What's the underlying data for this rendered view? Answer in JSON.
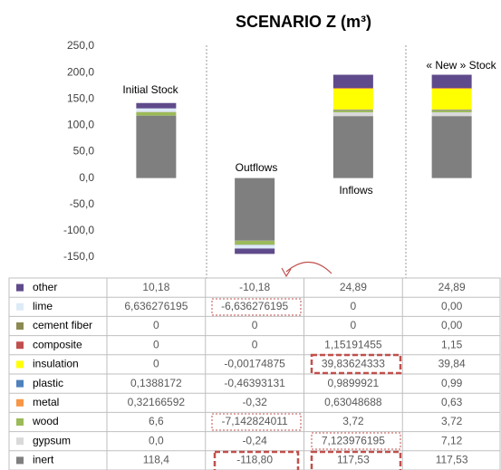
{
  "chart_data": {
    "type": "bar",
    "stacked": true,
    "title": "SCENARIO Z (m³)",
    "categories": [
      "Initial Stock",
      "Outflows",
      "Inflows",
      "« New » Stock"
    ],
    "ylim": [
      -150,
      250
    ],
    "yticks": [
      {
        "value": -150,
        "label": "-150,0"
      },
      {
        "value": -100,
        "label": "-100,0"
      },
      {
        "value": -50,
        "label": "-50,0"
      },
      {
        "value": 0,
        "label": "0,0"
      },
      {
        "value": 50,
        "label": "50,0"
      },
      {
        "value": 100,
        "label": "100,0"
      },
      {
        "value": 150,
        "label": "150,0"
      },
      {
        "value": 200,
        "label": "200,0"
      },
      {
        "value": 250,
        "label": "250,0"
      }
    ],
    "series": [
      {
        "name": "other",
        "color": "#5f4b8b",
        "values": [
          10.18,
          -10.18,
          24.89,
          24.89
        ],
        "value_labels": [
          "10,18",
          "-10,18",
          "24,89",
          "24,89"
        ]
      },
      {
        "name": "lime",
        "color": "#ddebf7",
        "values": [
          6.636276195,
          -6.636276195,
          0,
          0
        ],
        "value_labels": [
          "6,636276195",
          "-6,636276195",
          "0",
          "0,00"
        ]
      },
      {
        "name": "cement fiber",
        "color": "#8c8a52",
        "values": [
          0,
          0,
          0,
          0
        ],
        "value_labels": [
          "0",
          "0",
          "0",
          "0,00"
        ]
      },
      {
        "name": "composite",
        "color": "#c0504d",
        "values": [
          0,
          0,
          1.15191455,
          1.15
        ],
        "value_labels": [
          "0",
          "0",
          "1,15191455",
          "1,15"
        ]
      },
      {
        "name": "insulation",
        "color": "#ffff00",
        "values": [
          0,
          -0.00174875,
          39.83624333,
          39.84
        ],
        "value_labels": [
          "0",
          "-0,00174875",
          "39,83624333",
          "39,84"
        ]
      },
      {
        "name": "plastic",
        "color": "#4f81bd",
        "values": [
          0.1388172,
          -0.46393131,
          0.9899921,
          0.99
        ],
        "value_labels": [
          "0,1388172",
          "-0,46393131",
          "0,9899921",
          "0,99"
        ]
      },
      {
        "name": "metal",
        "color": "#f79646",
        "values": [
          0.32166592,
          -0.32,
          0.63048688,
          0.63
        ],
        "value_labels": [
          "0,32166592",
          "-0,32",
          "0,63048688",
          "0,63"
        ]
      },
      {
        "name": "wood",
        "color": "#9bbb59",
        "values": [
          6.6,
          -7.142824011,
          3.72,
          3.72
        ],
        "value_labels": [
          "6,6",
          "-7,142824011",
          "3,72",
          "3,72"
        ]
      },
      {
        "name": "gypsum",
        "color": "#d9d9d9",
        "values": [
          0,
          -0.24,
          7.123976195,
          7.12
        ],
        "value_labels": [
          "0,0",
          "-0,24",
          "7,123976195",
          "7,12"
        ]
      },
      {
        "name": "inert",
        "color": "#7f7f7f",
        "values": [
          118.4,
          -118.8,
          117.53,
          117.53
        ],
        "value_labels": [
          "118,4",
          "-118,80",
          "117,53",
          "117,53"
        ]
      }
    ]
  }
}
